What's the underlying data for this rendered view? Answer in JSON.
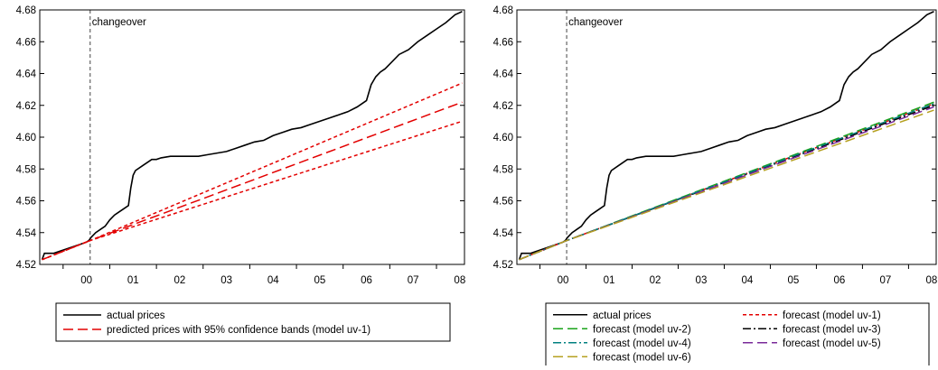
{
  "chart_data": [
    {
      "type": "line",
      "x_ticks": [
        "00",
        "01",
        "02",
        "03",
        "04",
        "05",
        "06",
        "07",
        "08"
      ],
      "ylim": [
        4.52,
        4.68
      ],
      "y_ticks": [
        "4.52",
        "4.54",
        "4.56",
        "4.58",
        "4.60",
        "4.62",
        "4.64",
        "4.66",
        "4.68"
      ],
      "grid": false,
      "legend_placement": "below",
      "annotation": "changeover",
      "changeover_x": 2000.58,
      "series": [
        {
          "name": "actual prices",
          "color": "#000000",
          "style": "solid",
          "x": [
            1999.55,
            1999.6,
            1999.7,
            1999.8,
            1999.9,
            2000.0,
            2000.1,
            2000.2,
            2000.3,
            2000.4,
            2000.5,
            2000.55,
            2000.6,
            2000.7,
            2000.8,
            2000.9,
            2001.0,
            2001.1,
            2001.2,
            2001.3,
            2001.4,
            2001.45,
            2001.5,
            2001.55,
            2001.7,
            2001.8,
            2001.9,
            2002.0,
            2002.1,
            2002.3,
            2002.5,
            2002.7,
            2002.9,
            2003.1,
            2003.3,
            2003.5,
            2003.7,
            2003.9,
            2004.1,
            2004.3,
            2004.5,
            2004.7,
            2004.9,
            2005.1,
            2005.3,
            2005.5,
            2005.7,
            2005.9,
            2006.1,
            2006.3,
            2006.5,
            2006.6,
            2006.7,
            2006.8,
            2006.9,
            2007.0,
            2007.2,
            2007.4,
            2007.6,
            2007.8,
            2008.0,
            2008.2,
            2008.4,
            2008.55
          ],
          "y": [
            4.523,
            4.527,
            4.527,
            4.527,
            4.528,
            4.529,
            4.53,
            4.531,
            4.532,
            4.533,
            4.534,
            4.535,
            4.537,
            4.54,
            4.542,
            4.544,
            4.548,
            4.551,
            4.553,
            4.555,
            4.557,
            4.568,
            4.576,
            4.579,
            4.582,
            4.584,
            4.586,
            4.586,
            4.587,
            4.588,
            4.588,
            4.588,
            4.588,
            4.589,
            4.59,
            4.591,
            4.593,
            4.595,
            4.597,
            4.598,
            4.601,
            4.603,
            4.605,
            4.606,
            4.608,
            4.61,
            4.612,
            4.614,
            4.616,
            4.619,
            4.623,
            4.633,
            4.638,
            4.641,
            4.643,
            4.646,
            4.652,
            4.655,
            4.66,
            4.664,
            4.668,
            4.672,
            4.677,
            4.679
          ]
        },
        {
          "name": "predicted prices with 95% confidence bands (model uv-1)",
          "color": "#e30000",
          "style": "long-dash",
          "x": [
            1999.55,
            2000.58,
            2008.55
          ],
          "y": [
            4.523,
            4.535,
            4.622
          ],
          "upper": [
            4.523,
            4.535,
            4.634
          ],
          "lower": [
            4.523,
            4.535,
            4.61
          ]
        }
      ]
    },
    {
      "type": "line",
      "x_ticks": [
        "00",
        "01",
        "02",
        "03",
        "04",
        "05",
        "06",
        "07",
        "08"
      ],
      "ylim": [
        4.52,
        4.68
      ],
      "y_ticks": [
        "4.52",
        "4.54",
        "4.56",
        "4.58",
        "4.60",
        "4.62",
        "4.64",
        "4.66",
        "4.68"
      ],
      "grid": false,
      "legend_placement": "below",
      "annotation": "changeover",
      "changeover_x": 2000.58,
      "series": [
        {
          "name": "actual prices",
          "color": "#000000",
          "style": "solid",
          "x": [
            1999.55,
            1999.6,
            1999.7,
            1999.8,
            1999.9,
            2000.0,
            2000.1,
            2000.2,
            2000.3,
            2000.4,
            2000.5,
            2000.55,
            2000.6,
            2000.7,
            2000.8,
            2000.9,
            2001.0,
            2001.1,
            2001.2,
            2001.3,
            2001.4,
            2001.45,
            2001.5,
            2001.55,
            2001.7,
            2001.8,
            2001.9,
            2002.0,
            2002.1,
            2002.3,
            2002.5,
            2002.7,
            2002.9,
            2003.1,
            2003.3,
            2003.5,
            2003.7,
            2003.9,
            2004.1,
            2004.3,
            2004.5,
            2004.7,
            2004.9,
            2005.1,
            2005.3,
            2005.5,
            2005.7,
            2005.9,
            2006.1,
            2006.3,
            2006.5,
            2006.6,
            2006.7,
            2006.8,
            2006.9,
            2007.0,
            2007.2,
            2007.4,
            2007.6,
            2007.8,
            2008.0,
            2008.2,
            2008.4,
            2008.55
          ],
          "y": [
            4.523,
            4.527,
            4.527,
            4.527,
            4.528,
            4.529,
            4.53,
            4.531,
            4.532,
            4.533,
            4.534,
            4.535,
            4.537,
            4.54,
            4.542,
            4.544,
            4.548,
            4.551,
            4.553,
            4.555,
            4.557,
            4.568,
            4.576,
            4.579,
            4.582,
            4.584,
            4.586,
            4.586,
            4.587,
            4.588,
            4.588,
            4.588,
            4.588,
            4.589,
            4.59,
            4.591,
            4.593,
            4.595,
            4.597,
            4.598,
            4.601,
            4.603,
            4.605,
            4.606,
            4.608,
            4.61,
            4.612,
            4.614,
            4.616,
            4.619,
            4.623,
            4.633,
            4.638,
            4.641,
            4.643,
            4.646,
            4.652,
            4.655,
            4.66,
            4.664,
            4.668,
            4.672,
            4.677,
            4.679
          ]
        },
        {
          "name": "forecast (model uv-1)",
          "color": "#e30000",
          "style": "short-dash",
          "x": [
            1999.55,
            2000.58,
            2008.55
          ],
          "y": [
            4.523,
            4.535,
            4.621
          ]
        },
        {
          "name": "forecast (model uv-2)",
          "color": "#1aa31a",
          "style": "long-dash",
          "x": [
            1999.55,
            2000.58,
            2008.55
          ],
          "y": [
            4.523,
            4.535,
            4.622
          ]
        },
        {
          "name": "forecast (model uv-3)",
          "color": "#000000",
          "style": "dash-dot",
          "x": [
            1999.55,
            2000.58,
            2008.55
          ],
          "y": [
            4.523,
            4.535,
            4.62
          ]
        },
        {
          "name": "forecast (model uv-4)",
          "color": "#008080",
          "style": "dash-dot",
          "x": [
            1999.55,
            2000.58,
            2008.55
          ],
          "y": [
            4.523,
            4.535,
            4.621
          ]
        },
        {
          "name": "forecast (model uv-5)",
          "color": "#7a2a9a",
          "style": "long-dash",
          "x": [
            1999.55,
            2000.58,
            2008.55
          ],
          "y": [
            4.523,
            4.535,
            4.619
          ]
        },
        {
          "name": "forecast (model uv-6)",
          "color": "#b5a020",
          "style": "long-dash",
          "x": [
            1999.55,
            2000.58,
            2008.55
          ],
          "y": [
            4.523,
            4.535,
            4.617
          ]
        }
      ]
    }
  ]
}
